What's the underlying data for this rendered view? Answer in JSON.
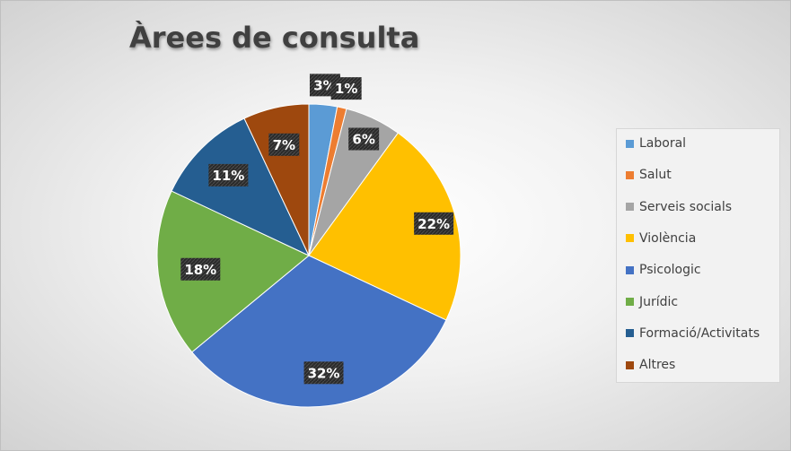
{
  "chart_data": {
    "type": "pie",
    "title": "Àrees de consulta",
    "legend_position": "right",
    "slices": [
      {
        "name": "Laboral",
        "value": 3,
        "label": "3%",
        "color": "#5B9BD5"
      },
      {
        "name": "Salut",
        "value": 1,
        "label": "1%",
        "color": "#ED7D31"
      },
      {
        "name": "Serveis socials",
        "value": 6,
        "label": "6%",
        "color": "#A5A5A5"
      },
      {
        "name": "Violència",
        "value": 22,
        "label": "22%",
        "color": "#FFC000"
      },
      {
        "name": "Psicologic",
        "value": 32,
        "label": "32%",
        "color": "#4472C4"
      },
      {
        "name": "Jurídic",
        "value": 18,
        "label": "18%",
        "color": "#70AD47"
      },
      {
        "name": "Formació/Activitats",
        "value": 11,
        "label": "11%",
        "color": "#255E91"
      },
      {
        "name": "Altres",
        "value": 7,
        "label": "7%",
        "color": "#9E480E"
      }
    ]
  }
}
